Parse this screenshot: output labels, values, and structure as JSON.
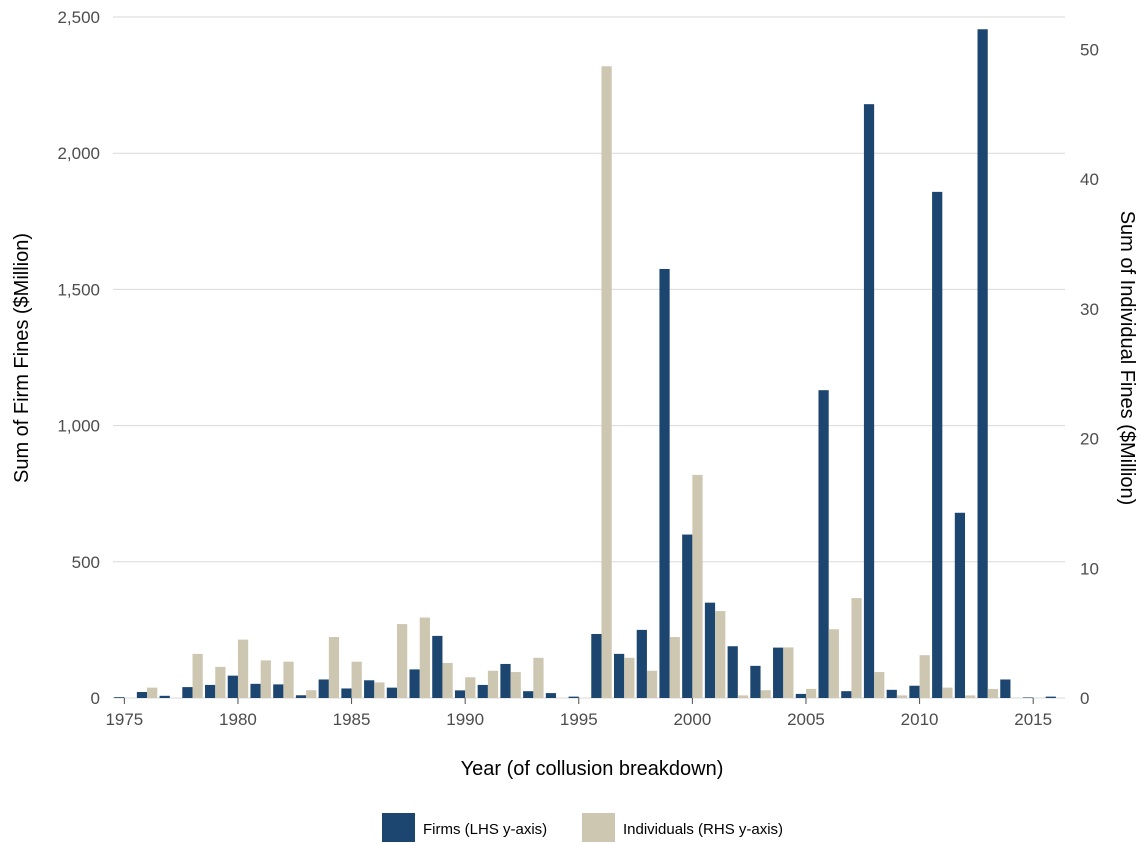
{
  "chart_data": {
    "type": "bar",
    "xlabel": "Year (of collusion breakdown)",
    "ylabel_left": "Sum of Firm Fines ($Million)",
    "ylabel_right": "Sum of Individual Fines ($Million)",
    "x": [
      1975,
      1976,
      1977,
      1978,
      1979,
      1980,
      1981,
      1982,
      1983,
      1984,
      1985,
      1986,
      1987,
      1988,
      1989,
      1990,
      1991,
      1992,
      1993,
      1994,
      1995,
      1996,
      1997,
      1998,
      1999,
      2000,
      2001,
      2002,
      2003,
      2004,
      2005,
      2006,
      2007,
      2008,
      2009,
      2010,
      2011,
      2012,
      2013,
      2014,
      2015,
      2016
    ],
    "x_ticks": [
      "1975",
      "1980",
      "1985",
      "1990",
      "1995",
      "2000",
      "2005",
      "2010",
      "2015"
    ],
    "x_tick_values": [
      1975,
      1980,
      1985,
      1990,
      1995,
      2000,
      2005,
      2010,
      2015
    ],
    "xlim": [
      1974.5,
      2016.4
    ],
    "left_axis": {
      "ylim": [
        0,
        2500
      ],
      "ticks": [
        "0",
        "500",
        "1,000",
        "1,500",
        "2,000",
        "2,500"
      ],
      "tick_values": [
        0,
        500,
        1000,
        1500,
        2000,
        2500
      ]
    },
    "right_axis": {
      "ylim": [
        0,
        52.5
      ],
      "ticks": [
        "0",
        "10",
        "20",
        "30",
        "40",
        "50"
      ],
      "tick_values": [
        0,
        10,
        20,
        30,
        40,
        50
      ]
    },
    "grid": true,
    "legend_position": "bottom",
    "series": [
      {
        "name": "Firms (LHS y-axis)",
        "axis": "left",
        "color": "#1c4670",
        "values": [
          3,
          22,
          8,
          40,
          48,
          82,
          52,
          50,
          10,
          68,
          35,
          65,
          38,
          105,
          228,
          28,
          48,
          125,
          25,
          18,
          5,
          235,
          162,
          250,
          1575,
          600,
          350,
          190,
          118,
          185,
          15,
          1130,
          25,
          2180,
          30,
          45,
          1858,
          680,
          2455,
          68,
          2,
          5
        ]
      },
      {
        "name": "Individuals (RHS y-axis)",
        "axis": "right",
        "color": "#cdc6b1",
        "values": [
          0,
          0.8,
          0,
          3.4,
          2.4,
          4.5,
          2.9,
          2.8,
          0.6,
          4.7,
          2.8,
          1.2,
          5.7,
          6.2,
          2.7,
          1.6,
          2.1,
          2.0,
          3.1,
          0,
          0,
          48.7,
          3.1,
          2.1,
          4.7,
          17.2,
          6.7,
          0.2,
          0.6,
          3.9,
          0.7,
          5.3,
          7.7,
          2.0,
          0.2,
          3.3,
          0.8,
          0.2,
          0.7,
          0,
          0,
          0
        ]
      }
    ]
  }
}
